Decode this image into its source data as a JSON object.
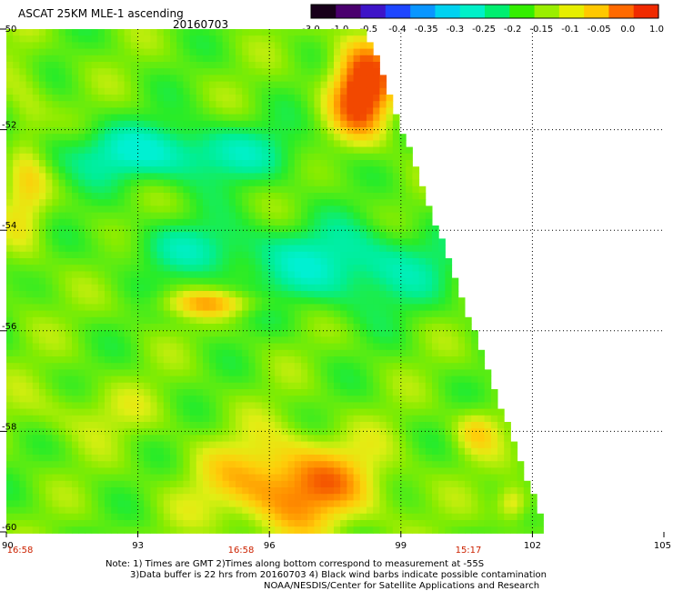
{
  "header": {
    "title": "ASCAT 25KM MLE-1 ascending",
    "date": "20160703"
  },
  "colorbar": {
    "labels": [
      "-3.0",
      "-1.0",
      "-0.5",
      "-0.4",
      "-0.35",
      "-0.3",
      "-0.25",
      "-0.2",
      "-0.15",
      "-0.1",
      "-0.05",
      "0.0",
      "1.0"
    ],
    "colors": [
      "#18001a",
      "#4a006e",
      "#3e14c8",
      "#1e46ff",
      "#0a96ff",
      "#00d2f0",
      "#00f0c8",
      "#00ee70",
      "#34ee00",
      "#9aee00",
      "#e6ee00",
      "#ffc800",
      "#ff6a00",
      "#f02a00"
    ]
  },
  "map": {
    "lat_labels": [
      "-50",
      "-52",
      "-54",
      "-56",
      "-58",
      "-60"
    ],
    "lon_labels": [
      "90",
      "93",
      "96",
      "99",
      "102",
      "105"
    ],
    "time_labels": [
      "16:58",
      "16:58",
      "15:17"
    ]
  },
  "notes": {
    "line1": "Note: 1) Times are GMT 2)Times along bottom correspond to measurement at -55S",
    "line2": "3)Data buffer is 22 hrs from 20160703 4) Black wind barbs indicate possible contamination",
    "line3": "NOAA/NESDIS/Center for Satellite Applications and Research"
  }
}
